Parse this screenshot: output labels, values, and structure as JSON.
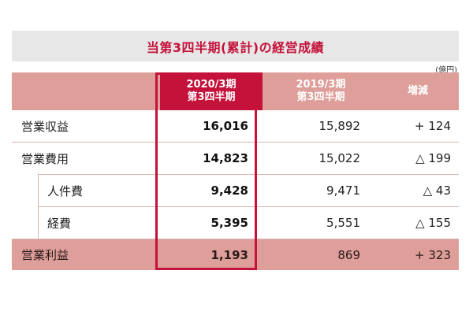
{
  "title": "当第3四半期(累計)の経営成績",
  "unit": "(億円)",
  "headers": {
    "current_line1": "2020/3期",
    "current_line2": "第3四半期",
    "previous_line1": "2019/3期",
    "previous_line2": "第3四半期",
    "diff": "増減"
  },
  "rows": [
    {
      "label": "営業収益",
      "current": "16,016",
      "previous": "15,892",
      "diff": "+ 124"
    },
    {
      "label": "営業費用",
      "current": "14,823",
      "previous": "15,022",
      "diff": "△ 199"
    },
    {
      "label": "人件費",
      "current": "9,428",
      "previous": "9,471",
      "diff": "△ 43"
    },
    {
      "label": "経費",
      "current": "5,395",
      "previous": "5,551",
      "diff": "△ 155"
    },
    {
      "label": "営業利益",
      "current": "1,193",
      "previous": "869",
      "diff": "+ 323"
    }
  ],
  "colors": {
    "accent": "#c4123a",
    "header_bg": "#de9e9a",
    "title_bg": "#e7e7e7"
  }
}
